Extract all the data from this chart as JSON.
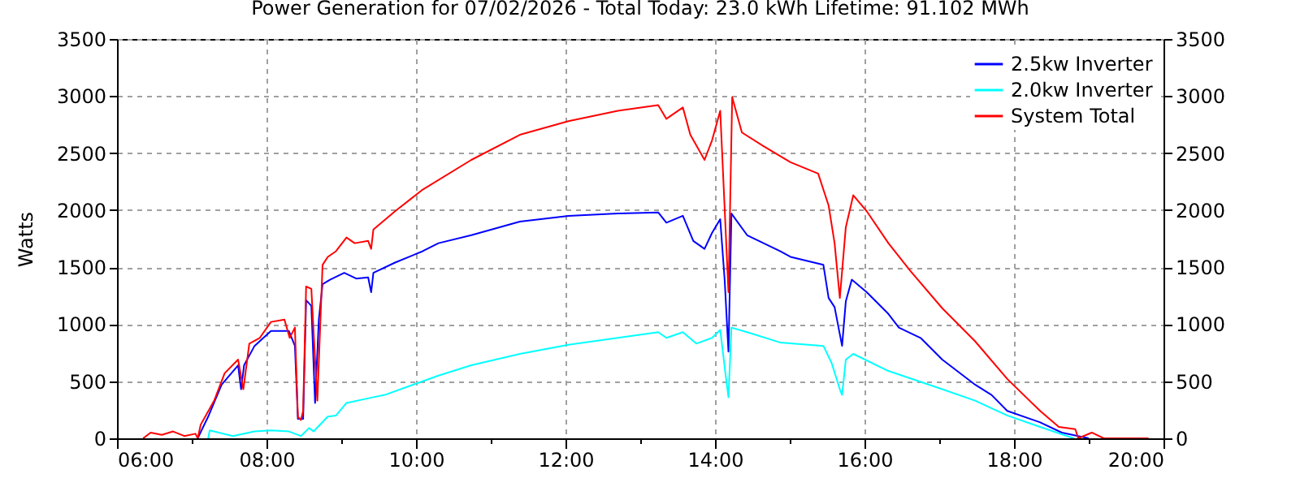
{
  "chart_data": {
    "type": "line",
    "title": "Power Generation for 07/02/2026 - Total Today: 23.0 kWh   Lifetime: 91.102 MWh",
    "ylabel": "Watts",
    "xlim": [
      6,
      20
    ],
    "xticks": [
      {
        "value": 6,
        "label": "06:00"
      },
      {
        "value": 7,
        "label": null
      },
      {
        "value": 8,
        "label": "08:00"
      },
      {
        "value": 9,
        "label": null
      },
      {
        "value": 10,
        "label": "10:00"
      },
      {
        "value": 11,
        "label": null
      },
      {
        "value": 12,
        "label": "12:00"
      },
      {
        "value": 13,
        "label": null
      },
      {
        "value": 14,
        "label": "14:00"
      },
      {
        "value": 15,
        "label": null
      },
      {
        "value": 16,
        "label": "16:00"
      },
      {
        "value": 17,
        "label": null
      },
      {
        "value": 18,
        "label": "18:00"
      },
      {
        "value": 19,
        "label": null
      },
      {
        "value": 20,
        "label": "20:00"
      }
    ],
    "ylim": [
      0,
      3500
    ],
    "yticks": [
      0,
      500,
      1000,
      1500,
      2000,
      2500,
      3000,
      3500
    ],
    "y2lim": [
      0,
      3500
    ],
    "y2ticks": [
      0,
      500,
      1000,
      1500,
      2000,
      2500,
      3000,
      3500
    ],
    "grid": true,
    "legend": "top right",
    "line_style": "solid",
    "marker": "none",
    "series": [
      {
        "name": "2.5kw Inverter",
        "color": "#0000ff",
        "x": [
          7.08,
          7.22,
          7.4,
          7.62,
          7.66,
          7.7,
          7.84,
          8.06,
          8.3,
          8.38,
          8.42,
          8.49,
          8.53,
          8.6,
          8.65,
          8.7,
          8.75,
          8.85,
          9.04,
          9.2,
          9.36,
          9.4,
          9.43,
          9.72,
          10.09,
          10.3,
          10.74,
          11.39,
          12.04,
          12.7,
          13.24,
          13.35,
          13.57,
          13.71,
          13.86,
          13.96,
          14.07,
          14.13,
          14.18,
          14.22,
          14.43,
          14.87,
          15.01,
          15.45,
          15.52,
          15.6,
          15.7,
          15.75,
          15.83,
          16.03,
          16.32,
          16.46,
          16.75,
          17.04,
          17.48,
          17.7,
          17.91,
          18.35,
          18.64,
          19.0
        ],
        "values": [
          0,
          190,
          470,
          640,
          430,
          640,
          810,
          940,
          940,
          810,
          170,
          170,
          1210,
          1160,
          310,
          1040,
          1350,
          1390,
          1450,
          1400,
          1410,
          1280,
          1450,
          1540,
          1640,
          1710,
          1780,
          1900,
          1950,
          1970,
          1980,
          1890,
          1950,
          1730,
          1660,
          1800,
          1920,
          1380,
          760,
          1970,
          1780,
          1640,
          1590,
          1520,
          1230,
          1150,
          810,
          1200,
          1390,
          1280,
          1090,
          970,
          880,
          690,
          470,
          380,
          240,
          140,
          50,
          0
        ]
      },
      {
        "name": "2.0kw Inverter",
        "color": "#00ffff",
        "x": [
          7.22,
          7.24,
          7.55,
          7.84,
          8.06,
          8.3,
          8.46,
          8.57,
          8.63,
          8.82,
          8.93,
          9.07,
          9.43,
          9.58,
          10.09,
          10.3,
          10.74,
          11.39,
          12.04,
          12.7,
          13.24,
          13.35,
          13.57,
          13.75,
          13.96,
          14.07,
          14.13,
          14.18,
          14.22,
          14.43,
          14.87,
          15.45,
          15.56,
          15.67,
          15.7,
          15.75,
          15.85,
          16.32,
          17.04,
          17.48,
          17.91,
          18.35,
          18.71,
          18.8
        ],
        "values": [
          0,
          70,
          20,
          60,
          70,
          60,
          20,
          90,
          60,
          190,
          200,
          310,
          360,
          380,
          500,
          550,
          640,
          740,
          820,
          880,
          930,
          880,
          930,
          830,
          880,
          950,
          620,
          360,
          970,
          930,
          840,
          810,
          660,
          430,
          380,
          690,
          740,
          590,
          430,
          330,
          200,
          100,
          20,
          0
        ]
      },
      {
        "name": "System Total",
        "color": "#ff0000",
        "x": [
          6.35,
          6.45,
          6.6,
          6.75,
          6.9,
          7.05,
          7.08,
          7.12,
          7.3,
          7.44,
          7.62,
          7.69,
          7.77,
          7.91,
          8.06,
          8.24,
          8.31,
          8.38,
          8.42,
          8.46,
          8.49,
          8.53,
          8.6,
          8.64,
          8.68,
          8.75,
          8.82,
          8.93,
          9.07,
          9.18,
          9.36,
          9.4,
          9.43,
          9.72,
          10.09,
          10.74,
          11.39,
          12.04,
          12.7,
          13.24,
          13.35,
          13.57,
          13.67,
          13.86,
          13.96,
          14.07,
          14.18,
          14.23,
          14.36,
          14.65,
          15.01,
          15.38,
          15.52,
          15.6,
          15.67,
          15.75,
          15.85,
          16.03,
          16.32,
          16.61,
          17.04,
          17.48,
          17.91,
          18.35,
          18.6,
          18.82,
          18.86,
          19.04,
          19.2,
          19.8
        ],
        "values": [
          0,
          50,
          30,
          60,
          20,
          40,
          0,
          120,
          330,
          570,
          690,
          430,
          830,
          880,
          1020,
          1040,
          880,
          970,
          190,
          160,
          240,
          1330,
          1310,
          810,
          330,
          1520,
          1590,
          1640,
          1760,
          1710,
          1730,
          1660,
          1830,
          1990,
          2180,
          2440,
          2660,
          2780,
          2870,
          2920,
          2800,
          2900,
          2660,
          2440,
          2610,
          2870,
          1280,
          2990,
          2680,
          2560,
          2420,
          2320,
          2040,
          1710,
          1230,
          1850,
          2130,
          1990,
          1710,
          1470,
          1140,
          850,
          520,
          240,
          100,
          80,
          0,
          50,
          0,
          0
        ]
      }
    ]
  }
}
